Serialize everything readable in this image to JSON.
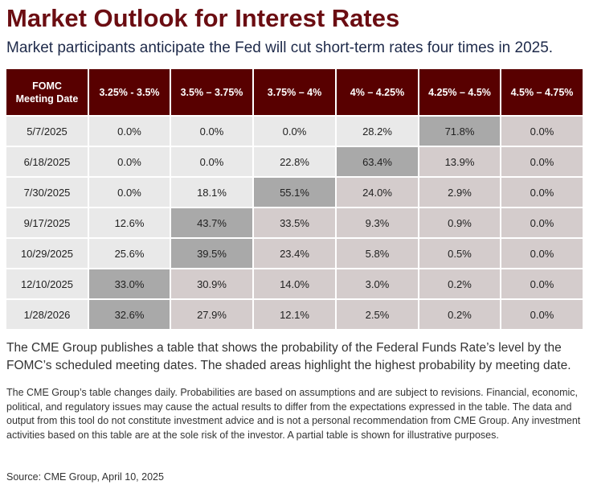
{
  "title": "Market Outlook for Interest Rates",
  "subtitle": "Market participants anticipate the Fed will cut short-term rates four times in 2025.",
  "chart_data": {
    "type": "table",
    "row_header_label": [
      "FOMC",
      "Meeting Date"
    ],
    "columns": [
      "3.25% - 3.5%",
      "3.5% – 3.75%",
      "3.75% – 4%",
      "4% – 4.25%",
      "4.25% – 4.5%",
      "4.5% – 4.75%"
    ],
    "rows": [
      {
        "date": "5/7/2025",
        "values": [
          "0.0%",
          "0.0%",
          "0.0%",
          "28.2%",
          "71.8%",
          "0.0%"
        ],
        "highlight": 4
      },
      {
        "date": "6/18/2025",
        "values": [
          "0.0%",
          "0.0%",
          "22.8%",
          "63.4%",
          "13.9%",
          "0.0%"
        ],
        "highlight": 3
      },
      {
        "date": "7/30/2025",
        "values": [
          "0.0%",
          "18.1%",
          "55.1%",
          "24.0%",
          "2.9%",
          "0.0%"
        ],
        "highlight": 2
      },
      {
        "date": "9/17/2025",
        "values": [
          "12.6%",
          "43.7%",
          "33.5%",
          "9.3%",
          "0.9%",
          "0.0%"
        ],
        "highlight": 1
      },
      {
        "date": "10/29/2025",
        "values": [
          "25.6%",
          "39.5%",
          "23.4%",
          "5.8%",
          "0.5%",
          "0.0%"
        ],
        "highlight": 1
      },
      {
        "date": "12/10/2025",
        "values": [
          "33.0%",
          "30.9%",
          "14.0%",
          "3.0%",
          "0.2%",
          "0.0%"
        ],
        "highlight": 0
      },
      {
        "date": "1/28/2026",
        "values": [
          "32.6%",
          "27.9%",
          "12.1%",
          "2.5%",
          "0.2%",
          "0.0%"
        ],
        "highlight": 0
      }
    ]
  },
  "note": "The CME Group publishes a table that shows the probability of the Federal Funds Rate’s level by the FOMC’s scheduled meeting dates. The shaded areas highlight the highest probability by meeting date.",
  "disclaimer": "The CME Group’s table changes daily. Probabilities are based on assumptions and are subject to revisions. Financial, economic, political, and regulatory issues may cause the actual results to differ from the expectations expressed in the table. The data and output from this tool do not constitute investment advice and is not a personal recommendation from CME Group. Any investment activities based on this table are at the sole risk of the investor. A partial table is shown for illustrative purposes.",
  "source": "Source: CME Group, April 10, 2025",
  "colors": {
    "title": "#6b0d12",
    "header_bg": "#580000",
    "cell_light": "#e9e9e9",
    "cell_mid": "#d4cccc",
    "cell_highlight": "#a9a9a9"
  }
}
